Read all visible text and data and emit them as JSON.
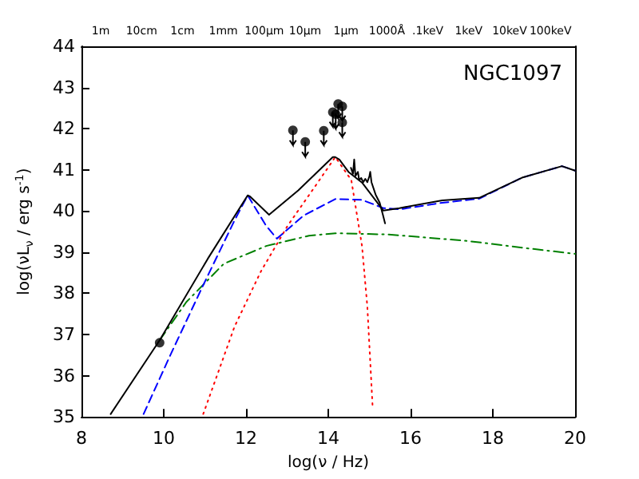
{
  "chart_data": {
    "type": "line",
    "xlabel": "log(ν / Hz)",
    "ylabel": "log(νL$_{ν}$ / erg s$^{-1}$)",
    "annotations": [
      "NGC1097",
      "1m",
      "10cm",
      "1cm",
      "1mm",
      "100μm",
      "10μm",
      "1μm",
      "1000Å",
      ".1keV",
      "1keV",
      "10keV",
      "100keV"
    ],
    "xlim": [
      8,
      20
    ],
    "xticks": [
      8,
      10,
      12,
      14,
      16,
      18,
      20
    ],
    "ylim": [
      35,
      44
    ],
    "yticks": [
      35,
      36,
      37,
      38,
      39,
      40,
      41,
      42,
      43,
      44
    ],
    "grid": false,
    "legend": false,
    "series": [
      {
        "color": "#ff0000",
        "line_style": "dotted",
        "marker": "none",
        "x": [
          10.96,
          11.72,
          12.36,
          13.01,
          13.66,
          14.17,
          14.56,
          14.82,
          14.95,
          15.08
        ],
        "values": [
          35.07,
          37.19,
          38.53,
          39.64,
          40.57,
          41.31,
          40.75,
          39.15,
          37.67,
          35.2
        ]
      },
      {
        "color": "#008000",
        "line_style": "dashdot",
        "marker": "none",
        "x": [
          9.9,
          10.55,
          11.46,
          12.49,
          13.53,
          14.17,
          15.47,
          17.41,
          18.71,
          20
        ],
        "values": [
          36.86,
          37.79,
          38.72,
          39.15,
          39.4,
          39.46,
          39.43,
          39.27,
          39.11,
          38.96
        ]
      },
      {
        "color": "#0000ff",
        "line_style": "dashed",
        "marker": "none",
        "x": [
          9.51,
          10.16,
          10.94,
          11.72,
          12.04,
          12.49,
          12.75,
          13.4,
          14.17,
          14.82,
          15.34,
          15.73,
          16.77,
          17.67,
          18.71,
          19.68,
          20
        ],
        "values": [
          35.07,
          36.5,
          38.16,
          39.77,
          40.38,
          39.64,
          39.33,
          39.89,
          40.29,
          40.27,
          40.07,
          40.04,
          40.2,
          40.3,
          40.81,
          41.09,
          40.98
        ]
      },
      {
        "color": "#000000",
        "line_style": "solid",
        "marker": "none",
        "x": [
          8.71,
          9.9,
          11.07,
          12.04,
          12.1,
          12.56,
          13.27,
          14.11,
          14.17,
          14.27,
          14.5,
          14.82,
          15.34,
          15.73,
          16.77,
          17.67,
          18.71,
          19.68,
          20
        ],
        "values": [
          35.07,
          36.86,
          38.84,
          40.38,
          40.35,
          39.91,
          40.5,
          41.31,
          41.31,
          41.25,
          40.94,
          40.69,
          40.01,
          40.07,
          40.26,
          40.32,
          40.81,
          41.09,
          40.98
        ]
      },
      {
        "color": "#000000",
        "line_style": "solid",
        "marker": "none",
        "x": [
          14.55,
          14.6,
          14.63,
          14.66,
          14.72,
          14.75,
          14.8,
          14.85,
          14.9,
          14.95,
          15.0,
          15.02,
          15.05,
          15.15,
          15.25,
          15.33,
          15.38
        ],
        "values": [
          41.05,
          40.9,
          41.25,
          40.85,
          40.95,
          40.75,
          40.8,
          40.7,
          40.78,
          40.7,
          40.85,
          40.95,
          40.7,
          40.4,
          40.2,
          39.9,
          39.7
        ]
      },
      {
        "type": "scatter",
        "color": "#000000",
        "marker": "circle",
        "x": [
          9.9,
          13.14,
          13.44,
          13.89,
          14.11,
          14.18,
          14.24,
          14.34,
          14.34
        ],
        "values": [
          36.8,
          41.96,
          41.68,
          41.95,
          42.4,
          42.35,
          42.6,
          42.54,
          42.15
        ],
        "errors": [
          null,
          [
            41.6,
            41.96
          ],
          [
            41.32,
            41.68
          ],
          [
            41.6,
            41.95
          ],
          [
            42.05,
            42.4
          ],
          [
            42.0,
            42.35
          ],
          [
            42.25,
            42.6
          ],
          [
            42.2,
            42.54
          ],
          [
            41.8,
            42.15
          ]
        ]
      }
    ]
  }
}
